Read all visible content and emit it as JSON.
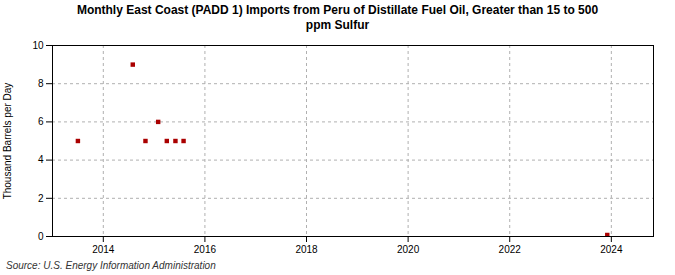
{
  "chart_data": {
    "type": "scatter",
    "title": "Monthly East Coast (PADD 1) Imports from Peru of Distillate Fuel Oil, Greater than 15 to 500\nppm Sulfur",
    "ylabel": "Thousand Barrels per Day",
    "caption": "Source: U.S. Energy Information Administration",
    "x": [
      2013.5,
      2014.58,
      2014.83,
      2015.08,
      2015.25,
      2015.42,
      2015.58,
      2023.92
    ],
    "values": [
      5.0,
      9.0,
      5.0,
      6.0,
      5.0,
      5.0,
      5.0,
      0.08
    ],
    "color": "#aa0000",
    "marker": "square",
    "xlim": [
      2013.0,
      2024.83
    ],
    "xticks": [
      2014,
      2016,
      2018,
      2020,
      2022,
      2024
    ],
    "ylim": [
      0,
      10
    ],
    "yticks": [
      0,
      2,
      4,
      6,
      8,
      10
    ],
    "grid": true
  }
}
